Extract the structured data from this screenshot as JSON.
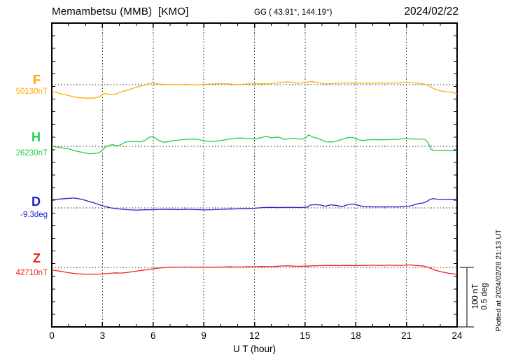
{
  "header": {
    "station_title": "Memambetsu (MMB)  [KMO]",
    "coordinates": "GG ( 43.91°, 144.19°)",
    "date": "2024/02/22"
  },
  "footer_note": "Plotted at 2024/02/28 21:13 UT",
  "chart_data": {
    "type": "line",
    "title": "Memambetsu (MMB) [KMO] magnetogram 2024/02/22",
    "xlabel": "U T (hour)",
    "x_range": [
      0,
      24
    ],
    "x_tick_labels": [
      "0",
      "3",
      "6",
      "9",
      "12",
      "15",
      "18",
      "21",
      "24"
    ],
    "grid_hours": [
      3,
      6,
      9,
      12,
      15,
      18,
      21
    ],
    "grid_style": "dotted",
    "scale_bar": {
      "label_nT": "100 nT",
      "label_deg": "0.5 deg",
      "nT": 100,
      "deg": 0.5
    },
    "series": [
      {
        "id": "F",
        "label": "F",
        "baseline_label": "50130nT",
        "baseline_value": 50130,
        "unit": "nT",
        "color": "#ffaa00",
        "points": [
          [
            0,
            -10.7
          ],
          [
            0.5,
            -14.9
          ],
          [
            1,
            -18.4
          ],
          [
            1.5,
            -21.4
          ],
          [
            2,
            -22.6
          ],
          [
            2.5,
            -22.6
          ],
          [
            2.8,
            -20.2
          ],
          [
            3.1,
            -14.9
          ],
          [
            3.4,
            -16.1
          ],
          [
            3.7,
            -16.7
          ],
          [
            4,
            -13.1
          ],
          [
            4.5,
            -8.9
          ],
          [
            5,
            -4.2
          ],
          [
            5.5,
            -0.6
          ],
          [
            5.8,
            2.4
          ],
          [
            6,
            3
          ],
          [
            6.3,
            1.2
          ],
          [
            6.7,
            0.5
          ],
          [
            7,
            0.2
          ],
          [
            7.5,
            0
          ],
          [
            8,
            0.6
          ],
          [
            8.5,
            -0.6
          ],
          [
            9,
            0.6
          ],
          [
            9.5,
            1.2
          ],
          [
            10,
            1.8
          ],
          [
            10.5,
            1.2
          ],
          [
            11,
            0
          ],
          [
            11.5,
            1.2
          ],
          [
            12,
            1.8
          ],
          [
            12.5,
            1.4
          ],
          [
            13,
            1.8
          ],
          [
            13.7,
            4.2
          ],
          [
            14,
            4.8
          ],
          [
            14.5,
            2.4
          ],
          [
            15,
            3.6
          ],
          [
            15.4,
            5.4
          ],
          [
            15.8,
            3
          ],
          [
            16.3,
            1.2
          ],
          [
            16.8,
            2.4
          ],
          [
            17.5,
            3
          ],
          [
            18,
            2.7
          ],
          [
            18.5,
            2.4
          ],
          [
            19,
            2.7
          ],
          [
            19.5,
            3
          ],
          [
            20,
            2.7
          ],
          [
            20.5,
            3
          ],
          [
            21,
            3.6
          ],
          [
            21.5,
            3
          ],
          [
            22,
            1.2
          ],
          [
            22.3,
            -1.2
          ],
          [
            22.5,
            -4.8
          ],
          [
            22.7,
            -7.7
          ],
          [
            23,
            -10.1
          ],
          [
            23.3,
            -11.9
          ],
          [
            23.7,
            -12.5
          ],
          [
            24,
            -15.5
          ]
        ]
      },
      {
        "id": "H",
        "label": "H",
        "baseline_label": "26230nT",
        "baseline_value": 26230,
        "unit": "nT",
        "color": "#22cc44",
        "points": [
          [
            0,
            0
          ],
          [
            0.3,
            -1.2
          ],
          [
            0.7,
            -3
          ],
          [
            1,
            -4.2
          ],
          [
            1.5,
            -8.3
          ],
          [
            2,
            -11.3
          ],
          [
            2.2,
            -12.5
          ],
          [
            2.5,
            -12.2
          ],
          [
            2.8,
            -10.7
          ],
          [
            3,
            -6.5
          ],
          [
            3.2,
            -0.6
          ],
          [
            3.4,
            1.8
          ],
          [
            3.6,
            2.7
          ],
          [
            3.9,
            0.8
          ],
          [
            4.1,
            3
          ],
          [
            4.3,
            6.5
          ],
          [
            4.6,
            8.3
          ],
          [
            5,
            8
          ],
          [
            5.2,
            7.4
          ],
          [
            5.5,
            9.5
          ],
          [
            5.8,
            15.5
          ],
          [
            6,
            16.4
          ],
          [
            6.2,
            12
          ],
          [
            6.5,
            7.7
          ],
          [
            6.7,
            6.8
          ],
          [
            7.2,
            9.5
          ],
          [
            7.6,
            10.7
          ],
          [
            8,
            11.9
          ],
          [
            8.4,
            12.2
          ],
          [
            8.7,
            11.3
          ],
          [
            9,
            9.2
          ],
          [
            9.3,
            8.3
          ],
          [
            9.7,
            8.6
          ],
          [
            10,
            9.5
          ],
          [
            10.4,
            11.6
          ],
          [
            10.8,
            13.4
          ],
          [
            11.2,
            14
          ],
          [
            11.6,
            13.1
          ],
          [
            12,
            12.2
          ],
          [
            12.4,
            14.6
          ],
          [
            12.7,
            16.7
          ],
          [
            13,
            14.3
          ],
          [
            13.4,
            15.5
          ],
          [
            13.8,
            11.6
          ],
          [
            14.3,
            13.4
          ],
          [
            14.8,
            11.9
          ],
          [
            15.05,
            14.3
          ],
          [
            15.2,
            19
          ],
          [
            15.5,
            15.2
          ],
          [
            15.8,
            13.1
          ],
          [
            16.2,
            7.7
          ],
          [
            16.6,
            7.1
          ],
          [
            17,
            9.9
          ],
          [
            17.5,
            14.6
          ],
          [
            17.8,
            15.2
          ],
          [
            18.1,
            11.6
          ],
          [
            18.4,
            9.8
          ],
          [
            18.7,
            10.7
          ],
          [
            19,
            11.3
          ],
          [
            19.5,
            11
          ],
          [
            20,
            11.3
          ],
          [
            20.5,
            11.6
          ],
          [
            21,
            13.4
          ],
          [
            21.4,
            12.2
          ],
          [
            21.8,
            12.2
          ],
          [
            22.1,
            11.9
          ],
          [
            22.3,
            5
          ],
          [
            22.45,
            -4.8
          ],
          [
            22.6,
            -6.5
          ],
          [
            23,
            -6.8
          ],
          [
            23.5,
            -7.1
          ],
          [
            24,
            -7.7
          ]
        ]
      },
      {
        "id": "D",
        "label": "D",
        "baseline_label": "-9.3deg",
        "baseline_value": -9.3,
        "unit": "deg",
        "color": "#2222cc",
        "points": [
          [
            0,
            0.068
          ],
          [
            0.5,
            0.075
          ],
          [
            1,
            0.08
          ],
          [
            1.3,
            0.083
          ],
          [
            1.7,
            0.074
          ],
          [
            2,
            0.063
          ],
          [
            2.5,
            0.042
          ],
          [
            3,
            0.018
          ],
          [
            3.5,
            0
          ],
          [
            4,
            -0.009
          ],
          [
            4.5,
            -0.015
          ],
          [
            5,
            -0.018
          ],
          [
            5.5,
            -0.016
          ],
          [
            6,
            -0.015
          ],
          [
            6.5,
            -0.012
          ],
          [
            7,
            -0.013
          ],
          [
            7.5,
            -0.014
          ],
          [
            8,
            -0.012
          ],
          [
            8.5,
            -0.014
          ],
          [
            9,
            -0.017
          ],
          [
            9.5,
            -0.015
          ],
          [
            10,
            -0.012
          ],
          [
            10.5,
            -0.01
          ],
          [
            11,
            -0.008
          ],
          [
            11.5,
            -0.006
          ],
          [
            12,
            -0.003
          ],
          [
            12.5,
            0.003
          ],
          [
            13,
            0.004
          ],
          [
            13.5,
            0.003
          ],
          [
            14,
            0.005
          ],
          [
            14.6,
            0.003
          ],
          [
            15.1,
            0.006
          ],
          [
            15.3,
            0.024
          ],
          [
            15.6,
            0.027
          ],
          [
            15.9,
            0.024
          ],
          [
            16.2,
            0.014
          ],
          [
            16.5,
            0.026
          ],
          [
            16.8,
            0.022
          ],
          [
            17.2,
            0.012
          ],
          [
            17.6,
            0.03
          ],
          [
            17.9,
            0.032
          ],
          [
            18.2,
            0.02
          ],
          [
            18.5,
            0.01
          ],
          [
            19,
            0.009
          ],
          [
            19.5,
            0.008
          ],
          [
            20,
            0.009
          ],
          [
            20.5,
            0.008
          ],
          [
            21,
            0.012
          ],
          [
            21.3,
            0.018
          ],
          [
            21.7,
            0.036
          ],
          [
            22,
            0.042
          ],
          [
            22.2,
            0.054
          ],
          [
            22.4,
            0.071
          ],
          [
            22.6,
            0.079
          ],
          [
            22.8,
            0.073
          ],
          [
            23.2,
            0.071
          ],
          [
            23.6,
            0.072
          ],
          [
            24,
            0.07
          ]
        ]
      },
      {
        "id": "Z",
        "label": "Z",
        "baseline_label": "42710nT",
        "baseline_value": 42710,
        "unit": "nT",
        "color": "#ee2222",
        "points": [
          [
            0,
            -4.2
          ],
          [
            0.5,
            -6.5
          ],
          [
            1,
            -8.9
          ],
          [
            1.5,
            -10.7
          ],
          [
            2,
            -11.3
          ],
          [
            2.5,
            -11.6
          ],
          [
            3,
            -11.1
          ],
          [
            3.5,
            -9.9
          ],
          [
            3.8,
            -9.2
          ],
          [
            4.1,
            -9.5
          ],
          [
            4.5,
            -8.3
          ],
          [
            5,
            -6.3
          ],
          [
            5.5,
            -4.4
          ],
          [
            6,
            -2.4
          ],
          [
            6.3,
            -1.2
          ],
          [
            6.6,
            -0.6
          ],
          [
            7,
            0.3
          ],
          [
            7.5,
            0.6
          ],
          [
            8,
            0.6
          ],
          [
            8.5,
            0.3
          ],
          [
            9,
            0.6
          ],
          [
            9.5,
            0.3
          ],
          [
            10,
            0.6
          ],
          [
            10.5,
            0.9
          ],
          [
            11,
            0.6
          ],
          [
            11.5,
            0.9
          ],
          [
            12,
            1.2
          ],
          [
            12.5,
            1.5
          ],
          [
            13,
            1.2
          ],
          [
            13.6,
            2.4
          ],
          [
            14,
            2.7
          ],
          [
            14.5,
            1.8
          ],
          [
            15,
            2.1
          ],
          [
            15.5,
            2.7
          ],
          [
            16,
            3
          ],
          [
            16.5,
            3.3
          ],
          [
            17,
            3
          ],
          [
            17.5,
            3.3
          ],
          [
            18,
            3
          ],
          [
            18.5,
            3.3
          ],
          [
            19,
            3.6
          ],
          [
            19.5,
            3.3
          ],
          [
            20,
            3.6
          ],
          [
            20.5,
            3.3
          ],
          [
            21,
            3.6
          ],
          [
            21.2,
            4.2
          ],
          [
            21.5,
            3.3
          ],
          [
            22,
            2.4
          ],
          [
            22.3,
            0
          ],
          [
            22.6,
            -3.6
          ],
          [
            23,
            -7.1
          ],
          [
            23.5,
            -9.9
          ],
          [
            24,
            -11.6
          ]
        ]
      }
    ]
  }
}
